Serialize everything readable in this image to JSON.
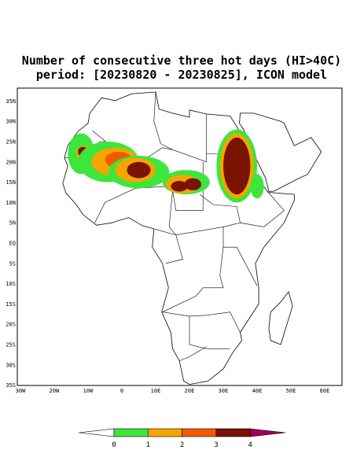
{
  "title": [
    "Number of consecutive three hot days (HI>40C)",
    "period: [20230820 - 20230825], ICON model"
  ],
  "map": {
    "lat_labels": [
      "35N",
      "30N",
      "25N",
      "20N",
      "15N",
      "10N",
      "5N",
      "EQ",
      "5S",
      "10S",
      "15S",
      "20S",
      "25S",
      "30S",
      "35S"
    ],
    "lon_labels": [
      "30W",
      "20W",
      "10W",
      "0",
      "10E",
      "20E",
      "30E",
      "40E",
      "50E",
      "60E"
    ]
  },
  "colorbar": {
    "labels": [
      "0",
      "1",
      "2",
      "3",
      "4"
    ],
    "colors": [
      "#ffffff",
      "#3ce63c",
      "#f5a500",
      "#f05a00",
      "#781400",
      "#a0005a"
    ]
  }
}
